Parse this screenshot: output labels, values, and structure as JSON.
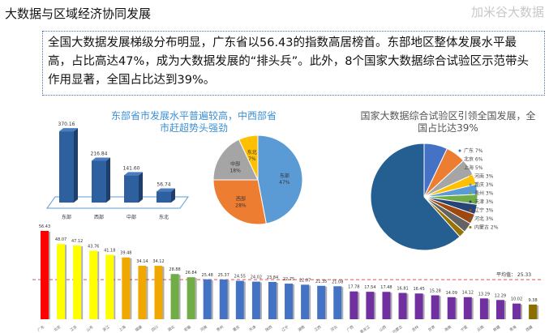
{
  "header": {
    "title": "大数据与区域经济协同发展"
  },
  "summary": {
    "text": "全国大数据发展梯级分布明显，广东省以56.43的指数高居榜首。东部地区整体发展水平最高，占比高达47%，成为大数据发展的“排头兵”。此外，8个国家大数据综合试验区示范带头作用显著，全国占比达到39%。"
  },
  "chart_data": [
    {
      "type": "bar",
      "title": "东部省市发展水平普遍较高，中西部省市赶超势头强劲",
      "categories": [
        "东部",
        "西部",
        "中部",
        "东北"
      ],
      "values": [
        370.16,
        216.84,
        141.6,
        56.74
      ],
      "value_labels": [
        "370.16",
        "216.84",
        "141.60",
        "56.74"
      ],
      "color": "#2e5f9e"
    },
    {
      "type": "pie",
      "categories": [
        "东部",
        "西部",
        "中部",
        "东北"
      ],
      "values": [
        47,
        28,
        18,
        7
      ],
      "labels": [
        "47%",
        "28%",
        "18%",
        "7%"
      ],
      "colors": [
        "#5b9bd5",
        "#ed7d31",
        "#a5a5a5",
        "#ffc000"
      ]
    },
    {
      "type": "pie",
      "title": "国家大数据综合试验区引领全国发展，全国占比达39%",
      "categories": [
        "广东",
        "北京",
        "上海",
        "河南",
        "重庆",
        "贵州",
        "天津",
        "辽宁",
        "河北",
        "内蒙古",
        ""
      ],
      "values": [
        7,
        6,
        5,
        3,
        3,
        3,
        3,
        3,
        3,
        2,
        61
      ],
      "legend": [
        "广东 7%",
        "北京 6%",
        "上海 5%",
        "河南 3%",
        "重庆 3%",
        "贵州 3%",
        "天津 3%",
        "辽宁 3%",
        "河北 3%",
        "内蒙古 2%"
      ],
      "colors": [
        "#4472c4",
        "#ed7d31",
        "#a5a5a5",
        "#ffc000",
        "#5b9bd5",
        "#70ad47",
        "#264478",
        "#9e480e",
        "#636363",
        "#997300",
        "#255e91"
      ],
      "legend_position": "right"
    },
    {
      "type": "bar",
      "categories": [
        "广东",
        "北京",
        "江苏",
        "山东",
        "浙江",
        "上海",
        "福建",
        "四川",
        "湖北",
        "安徽",
        "河南",
        "贵州",
        "重庆",
        "天津",
        "陕西",
        "辽宁",
        "湖南",
        "江西",
        "河北",
        "广西",
        "黑龙江",
        "山西",
        "内蒙古",
        "吉林",
        "甘肃",
        "海南",
        "宁夏",
        "云南",
        "新疆",
        "青海",
        "西藏"
      ],
      "values": [
        56.43,
        48.07,
        47.12,
        43.76,
        41.18,
        39.48,
        34.14,
        34.12,
        28.88,
        26.84,
        25.48,
        25.37,
        24.55,
        24.02,
        23.84,
        22.75,
        22.07,
        21.35,
        21.08,
        17.78,
        17.54,
        17.48,
        16.81,
        16.45,
        15.28,
        14.09,
        14.12,
        13.29,
        12.29,
        10.02,
        9.38
      ],
      "colors": [
        "#ff0000",
        "#ffff00",
        "#ffff00",
        "#ffff00",
        "#ffff00",
        "#f0a800",
        "#f0a800",
        "#f0a800",
        "#70ad47",
        "#70ad47",
        "#4472c4",
        "#4472c4",
        "#4472c4",
        "#4472c4",
        "#4472c4",
        "#4472c4",
        "#4472c4",
        "#4472c4",
        "#4472c4",
        "#7030a0",
        "#7030a0",
        "#7030a0",
        "#7030a0",
        "#7030a0",
        "#7030a0",
        "#7030a0",
        "#7030a0",
        "#7030a0",
        "#7030a0",
        "#7030a0",
        "#8b6d00"
      ],
      "average": 25.33,
      "average_label": "平均值：  25.33",
      "ylim": [
        0,
        60
      ]
    }
  ],
  "watermark": "加米谷大数据"
}
